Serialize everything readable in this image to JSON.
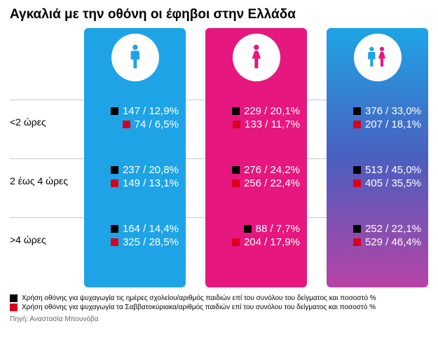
{
  "title": "Αγκαλιά με την οθόνη οι έφηβοι στην Ελλάδα",
  "row_labels": [
    "<2 ώρες",
    "2 έως 4 ώρες",
    ">4 ώρες"
  ],
  "row_label_tops": [
    126,
    210,
    294
  ],
  "row_sep_tops": [
    102,
    186,
    270
  ],
  "cell_tops": [
    108,
    192,
    276
  ],
  "columns": [
    {
      "name": "male",
      "gradient": "linear-gradient(180deg,#1ea4e6 0%,#1ea4e6 100%)",
      "icon_color": "#1ea4e6",
      "icon": "male",
      "cells": [
        {
          "black": "147 / 12,9%",
          "red": "74 / 6,5%"
        },
        {
          "black": "237 / 20,8%",
          "red": "149 / 13,1%"
        },
        {
          "black": "164 / 14,4%",
          "red": "325 / 28,5%"
        }
      ]
    },
    {
      "name": "female",
      "gradient": "linear-gradient(180deg,#e6177e 0%,#e6177e 100%)",
      "icon_color": "#e6177e",
      "icon": "female",
      "cells": [
        {
          "black": "229 / 20,1%",
          "red": "133 / 11,7%"
        },
        {
          "black": "276 / 24,2%",
          "red": "256 / 22,4%"
        },
        {
          "black": "88 / 7,7%",
          "red": "204 / 17,9%"
        }
      ]
    },
    {
      "name": "both",
      "gradient": "linear-gradient(180deg,#1ea4e6 0%,#4a5fbf 50%,#b843a6 100%)",
      "icon_color": "#1ea4e6",
      "icon": "both",
      "cells": [
        {
          "black": "376 / 33,0%",
          "red": "207 / 18,1%"
        },
        {
          "black": "513 / 45,0%",
          "red": "405 / 35,5%"
        },
        {
          "black": "252 / 22,1%",
          "red": "529 / 46,4%"
        }
      ]
    }
  ],
  "black_color": "#000000",
  "red_color": "#d9001b",
  "legend": [
    {
      "color": "#000000",
      "text": "Χρήση οθόνης για ψυχαγωγία τις ημέρες σχολείου/αριθμός παιδιών επί του συνόλου του δείγματος και ποσοστό %"
    },
    {
      "color": "#d9001b",
      "text": "Χρήση οθόνης για ψυχαγωγία τα Σαββατοκύριακα/αριθμός παιδιών επί του συνόλου του δείγματος και ποσοστό %"
    }
  ],
  "source": "Πηγή: Αναστασία Μπουνόβα",
  "female_icon_color": "#e6177e"
}
